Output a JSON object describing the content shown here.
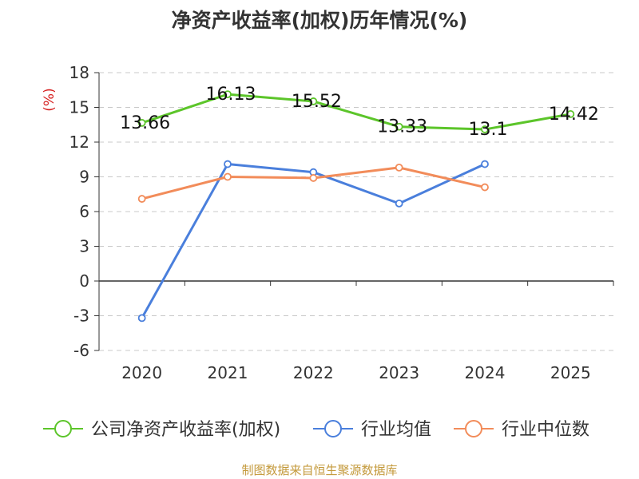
{
  "title": "净资产收益率(加权)历年情况(%)",
  "source": "制图数据来自恒生聚源数据库",
  "chart_data": {
    "type": "line",
    "title": "净资产收益率(加权)历年情况(%)",
    "ylabel": "(%)",
    "ylim": [
      -6,
      18
    ],
    "yticks": [
      18,
      15,
      12,
      9,
      6,
      3,
      0,
      -3,
      -6
    ],
    "x": [
      "2020",
      "2021",
      "2022",
      "2023",
      "2024",
      "2025"
    ],
    "grid": true,
    "legend_position": "bottom",
    "series": [
      {
        "name": "公司净资产收益率(加权)",
        "color": "#5cc52a",
        "values": [
          13.66,
          16.13,
          15.52,
          13.33,
          13.1,
          14.42
        ],
        "labels": [
          "13.66",
          "16.13",
          "15.52",
          "13.33",
          "13.1",
          "14.42"
        ]
      },
      {
        "name": "行业均值",
        "color": "#4a7fdc",
        "values": [
          -3.2,
          10.1,
          9.4,
          6.7,
          10.1,
          null
        ]
      },
      {
        "name": "行业中位数",
        "color": "#f28c5a",
        "values": [
          7.1,
          9.0,
          8.9,
          9.8,
          8.1,
          null
        ]
      }
    ]
  }
}
